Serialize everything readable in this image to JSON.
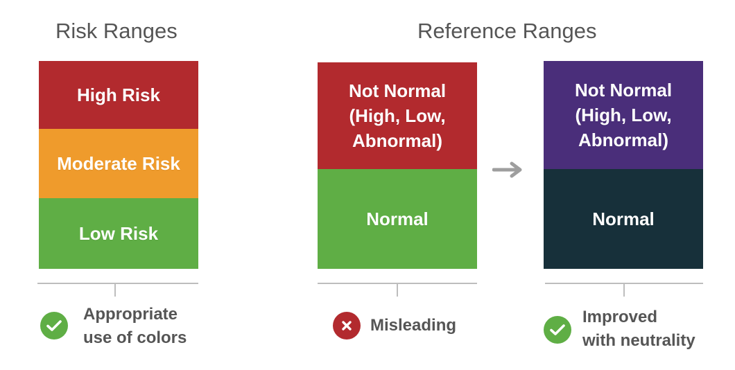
{
  "colors": {
    "high_risk": "#b22a2e",
    "moderate_risk": "#ef9b2c",
    "low_risk": "#5fae45",
    "not_normal_red": "#b22a2e",
    "normal_green": "#5fae45",
    "not_normal_purple": "#4a2e7a",
    "normal_dark": "#17303a",
    "check_green": "#5fae45",
    "cross_red": "#b22a2e",
    "arrow_gray": "#9e9e9e"
  },
  "risk_ranges": {
    "heading": "Risk Ranges",
    "blocks": [
      {
        "label": "High Risk"
      },
      {
        "label": "Moderate Risk"
      },
      {
        "label": "Low Risk"
      }
    ],
    "verdict": {
      "icon": "check-circle-icon",
      "text": "Appropriate\nuse of colors"
    }
  },
  "reference_ranges": {
    "heading": "Reference Ranges",
    "before": {
      "blocks": [
        {
          "label": "Not Normal\n(High, Low,\nAbnormal)"
        },
        {
          "label": "Normal"
        }
      ],
      "verdict": {
        "icon": "x-circle-icon",
        "text": "Misleading"
      }
    },
    "arrow_icon": "arrow-right-icon",
    "after": {
      "blocks": [
        {
          "label": "Not Normal\n(High, Low,\nAbnormal)"
        },
        {
          "label": "Normal"
        }
      ],
      "verdict": {
        "icon": "check-circle-icon",
        "text": "Improved\nwith neutrality"
      }
    }
  }
}
